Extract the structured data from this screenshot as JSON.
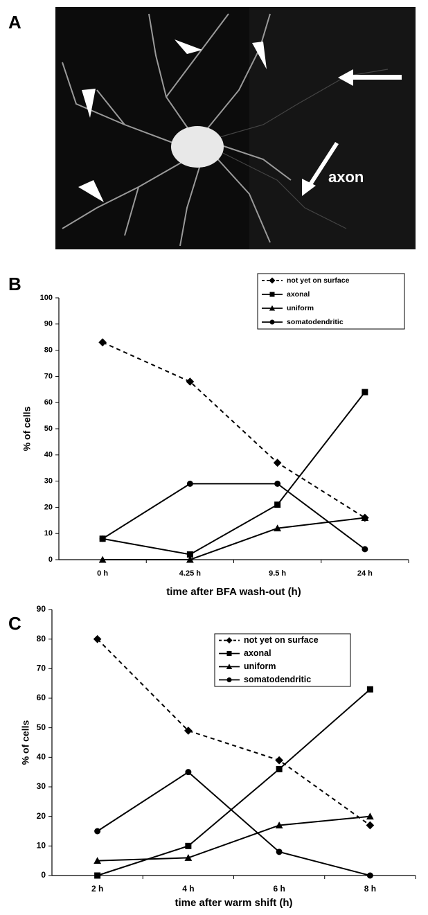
{
  "panel_labels": [
    "A",
    "B",
    "C"
  ],
  "image": {
    "annotation": "axon"
  },
  "chart_data": [
    {
      "type": "line",
      "xlabel": "time after BFA wash-out (h)",
      "ylabel": "% of cells",
      "categories": [
        "0 h",
        "4.25 h",
        "9.5 h",
        "24 h"
      ],
      "ylim": [
        0,
        100
      ],
      "yticks": [
        0,
        10,
        20,
        30,
        40,
        50,
        60,
        70,
        80,
        90,
        100
      ],
      "grid": false,
      "legend": "upper right",
      "series": [
        {
          "name": "not yet on surface",
          "color": "#000000",
          "marker": "diamond",
          "dashed": true,
          "values": [
            83,
            68,
            37,
            16
          ]
        },
        {
          "name": "axonal",
          "color": "#000000",
          "marker": "square",
          "dashed": false,
          "values": [
            8,
            2,
            21,
            64
          ]
        },
        {
          "name": "uniform",
          "color": "#000000",
          "marker": "triangle",
          "dashed": false,
          "values": [
            0,
            0,
            12,
            16
          ]
        },
        {
          "name": "somatodendritic",
          "color": "#000000",
          "marker": "circle",
          "dashed": false,
          "values": [
            8,
            29,
            29,
            4
          ]
        }
      ]
    },
    {
      "type": "line",
      "xlabel": "time after warm shift (h)",
      "ylabel": "% of cells",
      "categories": [
        "2 h",
        "4 h",
        "6 h",
        "8 h"
      ],
      "ylim": [
        0,
        90
      ],
      "yticks": [
        0,
        10,
        20,
        30,
        40,
        50,
        60,
        70,
        80,
        90
      ],
      "grid": false,
      "legend": "upper right",
      "series": [
        {
          "name": "not yet on surface",
          "color": "#000000",
          "marker": "diamond",
          "dashed": true,
          "values": [
            80,
            49,
            39,
            17
          ]
        },
        {
          "name": "axonal",
          "color": "#000000",
          "marker": "square",
          "dashed": false,
          "values": [
            0,
            10,
            36,
            63
          ]
        },
        {
          "name": "uniform",
          "color": "#000000",
          "marker": "triangle",
          "dashed": false,
          "values": [
            5,
            6,
            17,
            20
          ]
        },
        {
          "name": "somatodendritic",
          "color": "#000000",
          "marker": "circle",
          "dashed": false,
          "values": [
            15,
            35,
            8,
            0
          ]
        }
      ]
    }
  ]
}
